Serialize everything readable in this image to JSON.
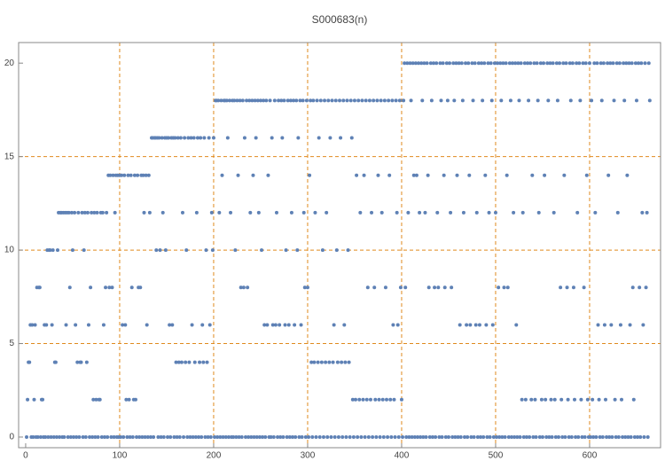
{
  "chart_data": {
    "type": "scatter",
    "title": "S000683(n)",
    "color": "#5e81b5",
    "grid": true,
    "grid_color": "#e08a1e",
    "xlim": [
      -7.5,
      675.5
    ],
    "ylim": [
      -0.57,
      21.1
    ],
    "xticks": [
      0,
      100,
      200,
      300,
      400,
      500,
      600
    ],
    "yticks": [
      0,
      5,
      10,
      15,
      20
    ],
    "grid_x": [
      100,
      200,
      300,
      400,
      500,
      600
    ],
    "grid_y": [
      5,
      10,
      15
    ],
    "x": [
      1,
      2,
      3,
      4,
      5,
      6,
      7,
      8,
      9,
      10,
      11,
      12,
      13,
      14,
      15,
      16,
      17,
      18,
      19,
      20,
      21,
      22,
      23,
      24,
      25,
      26,
      27,
      28,
      29,
      30,
      31,
      32,
      33,
      34,
      35,
      36,
      37,
      38,
      39,
      40,
      41,
      42,
      43,
      44,
      45,
      46,
      47,
      48,
      49,
      50,
      51,
      52,
      53,
      54,
      55,
      56,
      57,
      58,
      59,
      60,
      61,
      62,
      63,
      64,
      65,
      66,
      67,
      68,
      69,
      70,
      71,
      72,
      73,
      74,
      75,
      76,
      77,
      78,
      79,
      80,
      81,
      82,
      83,
      84,
      85,
      86,
      87,
      88,
      89,
      90,
      91,
      92,
      93,
      94,
      95,
      96,
      97,
      98,
      99,
      100,
      101,
      102,
      103,
      104,
      105,
      106,
      107,
      108,
      109,
      110,
      111,
      112,
      113,
      114,
      115,
      116,
      117,
      118,
      119,
      120,
      121,
      122,
      123,
      124,
      125,
      126,
      127,
      128,
      129,
      130,
      131,
      132,
      133,
      134,
      135,
      136,
      137,
      138,
      139,
      140,
      141,
      142,
      143,
      144,
      145,
      146,
      147,
      148,
      149,
      150,
      151,
      152,
      153,
      154,
      155,
      156,
      157,
      158,
      159,
      160,
      161,
      162,
      163,
      164,
      165,
      166,
      167,
      168,
      169,
      170,
      171,
      172,
      173,
      174,
      175,
      176,
      177,
      178,
      179,
      180,
      181,
      182,
      183,
      184,
      185,
      186,
      187,
      188,
      189,
      190,
      191,
      192,
      193,
      194,
      195,
      196,
      197,
      198,
      199,
      200,
      201,
      202,
      203,
      204,
      205,
      206,
      207,
      208,
      209,
      210,
      211,
      212,
      213,
      214,
      215,
      216,
      217,
      218,
      219,
      220,
      221,
      222,
      223,
      224,
      225,
      226,
      227,
      228,
      229,
      230,
      231,
      232,
      233,
      234,
      235,
      236,
      237,
      238,
      239,
      240,
      241,
      242,
      243,
      244,
      245,
      246,
      247,
      248,
      249,
      250,
      251,
      252,
      253,
      254,
      255,
      256,
      257,
      258,
      259,
      260,
      261,
      262,
      263,
      264,
      265,
      266,
      267,
      268,
      269,
      270,
      271,
      272,
      273,
      274,
      275,
      276,
      277,
      278,
      279,
      280,
      281,
      282,
      283,
      284,
      285,
      286,
      287,
      288,
      289,
      290,
      291,
      292,
      293,
      294,
      295,
      296,
      297,
      298,
      299,
      300,
      301,
      302,
      303,
      304,
      305,
      306,
      307,
      308,
      309,
      310,
      311,
      312,
      313,
      314,
      315,
      316,
      317,
      318,
      319,
      320,
      321,
      322,
      323,
      324,
      325,
      326,
      327,
      328,
      329,
      330,
      331,
      332,
      333,
      334,
      335,
      336,
      337,
      338,
      339,
      340,
      341,
      342,
      343,
      344,
      345,
      346,
      347,
      348,
      349,
      350,
      351,
      352,
      353,
      354,
      355,
      356,
      357,
      358,
      359,
      360,
      361,
      362,
      363,
      364,
      365,
      366,
      367,
      368,
      369,
      370,
      371,
      372,
      373,
      374,
      375,
      376,
      377,
      378,
      379,
      380,
      381,
      382,
      383,
      384,
      385,
      386,
      387,
      388,
      389,
      390,
      391,
      392,
      393,
      394,
      395,
      396,
      397,
      398,
      399,
      400,
      401,
      402,
      403,
      404,
      405,
      406,
      407,
      408,
      409,
      410,
      411,
      412,
      413,
      414,
      415,
      416,
      417,
      418,
      419,
      420,
      421,
      422,
      423,
      424,
      425,
      426,
      427,
      428,
      429,
      430,
      431,
      432,
      433,
      434,
      435,
      436,
      437,
      438,
      439,
      440,
      441,
      442,
      443,
      444,
      445,
      446,
      447,
      448,
      449,
      450,
      451,
      452,
      453,
      454,
      455,
      456,
      457,
      458,
      459,
      460,
      461,
      462,
      463,
      464,
      465,
      466,
      467,
      468,
      469,
      470,
      471,
      472,
      473,
      474,
      475,
      476,
      477,
      478,
      479,
      480,
      481,
      482,
      483,
      484,
      485,
      486,
      487,
      488,
      489,
      490,
      491,
      492,
      493,
      494,
      495,
      496,
      497,
      498,
      499,
      500,
      501,
      502,
      503,
      504,
      505,
      506,
      507,
      508,
      509,
      510,
      511,
      512,
      513,
      514,
      515,
      516,
      517,
      518,
      519,
      520,
      521,
      522,
      523,
      524,
      525,
      526,
      527,
      528,
      529,
      530,
      531,
      532,
      533,
      534,
      535,
      536,
      537,
      538,
      539,
      540,
      541,
      542,
      543,
      544,
      545,
      546,
      547,
      548,
      549,
      550,
      551,
      552,
      553,
      554,
      555,
      556,
      557,
      558,
      559,
      560,
      561,
      562,
      563,
      564,
      565,
      566,
      567,
      568,
      569,
      570,
      571,
      572,
      573,
      574,
      575,
      576,
      577,
      578,
      579,
      580,
      581,
      582,
      583,
      584,
      585,
      586,
      587,
      588,
      589,
      590,
      591,
      592,
      593,
      594,
      595,
      596,
      597,
      598,
      599,
      600,
      601,
      602,
      603,
      604,
      605,
      606,
      607,
      608,
      609,
      610,
      611,
      612,
      613,
      614,
      615,
      616,
      617,
      618,
      619,
      620,
      621,
      622,
      623,
      624,
      625,
      626,
      627,
      628,
      629,
      630,
      631,
      632,
      633,
      634,
      635,
      636,
      637,
      638,
      639,
      640,
      641,
      642,
      643,
      644,
      645,
      646,
      647,
      648,
      649,
      650,
      651,
      652,
      653,
      654,
      655,
      656,
      657,
      658,
      659,
      660,
      661,
      662,
      663,
      664
    ],
    "values": [
      0,
      2,
      4,
      4,
      6,
      0,
      6,
      0,
      2,
      6,
      0,
      8,
      0,
      8,
      8,
      0,
      2,
      2,
      0,
      6,
      0,
      6,
      10,
      0,
      10,
      10,
      0,
      6,
      10,
      0,
      4,
      4,
      0,
      10,
      12,
      0,
      12,
      12,
      0,
      12,
      0,
      12,
      6,
      12,
      0,
      12,
      8,
      0,
      12,
      10,
      0,
      12,
      6,
      0,
      4,
      12,
      0,
      4,
      4,
      12,
      0,
      10,
      12,
      0,
      4,
      12,
      6,
      0,
      8,
      12,
      0,
      2,
      12,
      0,
      2,
      12,
      0,
      2,
      2,
      12,
      0,
      12,
      6,
      0,
      8,
      12,
      0,
      14,
      8,
      14,
      0,
      8,
      14,
      0,
      12,
      14,
      0,
      14,
      0,
      14,
      0,
      14,
      6,
      0,
      14,
      6,
      2,
      0,
      14,
      2,
      0,
      14,
      8,
      0,
      2,
      14,
      2,
      0,
      14,
      8,
      0,
      8,
      14,
      0,
      14,
      12,
      0,
      14,
      6,
      0,
      14,
      12,
      0,
      16,
      16,
      0,
      16,
      16,
      10,
      16,
      0,
      16,
      10,
      0,
      16,
      12,
      0,
      16,
      10,
      16,
      0,
      16,
      6,
      0,
      16,
      6,
      16,
      0,
      16,
      4,
      0,
      16,
      4,
      0,
      16,
      4,
      12,
      0,
      16,
      4,
      10,
      0,
      16,
      4,
      0,
      16,
      6,
      0,
      16,
      4,
      0,
      12,
      16,
      0,
      4,
      16,
      0,
      6,
      4,
      16,
      0,
      10,
      4,
      0,
      16,
      6,
      0,
      12,
      10,
      16,
      0,
      18,
      18,
      0,
      18,
      12,
      0,
      18,
      14,
      0,
      18,
      18,
      0,
      18,
      16,
      0,
      18,
      12,
      0,
      18,
      0,
      18,
      10,
      0,
      18,
      14,
      0,
      18,
      8,
      0,
      18,
      8,
      16,
      0,
      18,
      8,
      0,
      18,
      12,
      0,
      18,
      14,
      0,
      18,
      16,
      0,
      18,
      12,
      0,
      18,
      10,
      0,
      18,
      6,
      0,
      18,
      6,
      14,
      0,
      18,
      0,
      16,
      6,
      0,
      18,
      6,
      12,
      0,
      18,
      6,
      0,
      18,
      16,
      0,
      18,
      6,
      10,
      0,
      18,
      6,
      0,
      18,
      12,
      0,
      18,
      6,
      0,
      18,
      10,
      16,
      0,
      18,
      6,
      0,
      18,
      12,
      8,
      0,
      18,
      8,
      0,
      14,
      18,
      4,
      0,
      18,
      4,
      12,
      0,
      18,
      4,
      16,
      0,
      18,
      4,
      10,
      0,
      18,
      4,
      12,
      0,
      18,
      4,
      16,
      0,
      18,
      4,
      6,
      0,
      18,
      10,
      4,
      0,
      18,
      16,
      4,
      0,
      18,
      6,
      4,
      0,
      18,
      10,
      4,
      0,
      18,
      16,
      2,
      0,
      18,
      2,
      14,
      0,
      18,
      2,
      12,
      0,
      18,
      2,
      14,
      0,
      18,
      2,
      8,
      0,
      18,
      2,
      12,
      0,
      18,
      8,
      2,
      0,
      18,
      14,
      2,
      0,
      18,
      12,
      2,
      0,
      18,
      8,
      2,
      0,
      18,
      14,
      2,
      0,
      18,
      6,
      2,
      0,
      18,
      12,
      6,
      0,
      18,
      8,
      2,
      0,
      18,
      20,
      8,
      0,
      20,
      12,
      0,
      20,
      18,
      0,
      20,
      14,
      0,
      20,
      14,
      0,
      20,
      12,
      0,
      20,
      18,
      0,
      20,
      12,
      0,
      20,
      14,
      8,
      0,
      20,
      18,
      0,
      20,
      8,
      0,
      20,
      12,
      8,
      0,
      20,
      18,
      0,
      20,
      14,
      8,
      0,
      20,
      18,
      0,
      20,
      12,
      8,
      0,
      20,
      18,
      0,
      20,
      14,
      0,
      20,
      6,
      0,
      20,
      18,
      12,
      0,
      20,
      6,
      0,
      20,
      14,
      6,
      0,
      20,
      18,
      0,
      20,
      6,
      12,
      0,
      20,
      6,
      0,
      20,
      18,
      0,
      20,
      14,
      6,
      0,
      20,
      12,
      0,
      20,
      18,
      6,
      0,
      20,
      12,
      0,
      20,
      8,
      0,
      20,
      18,
      0,
      20,
      8,
      0,
      20,
      14,
      8,
      0,
      20,
      18,
      0,
      20,
      12,
      0,
      20,
      6,
      0,
      20,
      18,
      0,
      20,
      2,
      12,
      0,
      20,
      2,
      0,
      20,
      18,
      0,
      20,
      2,
      14,
      0,
      20,
      2,
      0,
      20,
      18,
      12,
      0,
      20,
      2,
      0,
      20,
      14,
      2,
      0,
      20,
      18,
      0,
      20,
      2,
      0,
      20,
      12,
      2,
      0,
      20,
      18,
      0,
      20,
      8,
      2,
      0,
      20,
      14,
      0,
      20,
      8,
      2,
      0,
      20,
      18,
      0,
      20,
      8,
      2,
      0,
      20,
      12,
      0,
      20,
      18,
      2,
      0,
      20,
      8,
      0,
      20,
      14,
      2,
      0,
      20,
      0,
      18,
      2,
      0,
      20,
      12,
      0,
      20,
      6,
      2,
      0,
      20,
      18,
      0,
      20,
      6,
      2,
      0,
      20,
      14,
      0,
      20,
      6,
      0,
      20,
      18,
      2,
      0,
      20,
      12,
      0,
      20,
      6,
      2,
      0,
      20,
      18,
      0,
      20,
      14,
      0,
      20,
      6,
      0,
      20,
      8,
      2,
      0,
      20,
      18,
      0,
      20,
      8,
      0,
      20,
      12,
      6,
      0,
      20,
      8,
      12,
      0,
      20,
      18
    ]
  }
}
